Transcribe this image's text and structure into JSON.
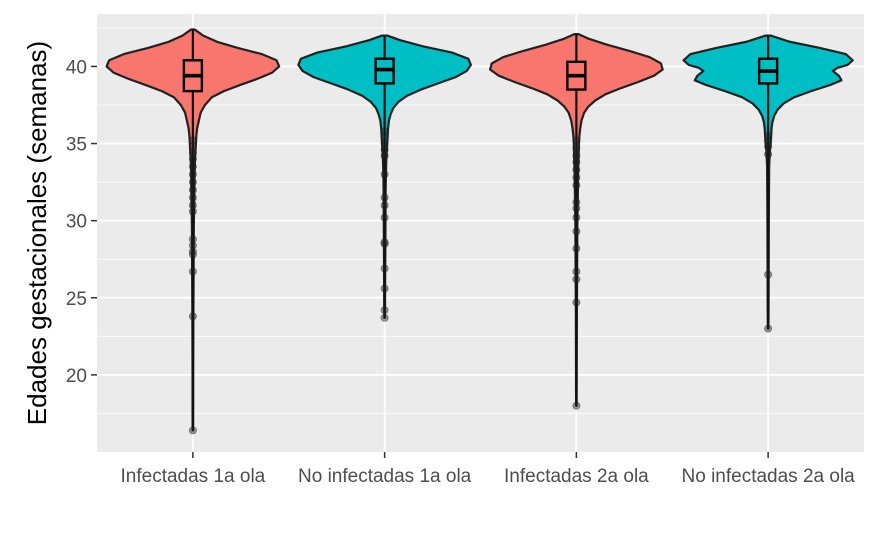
{
  "chart_data": {
    "type": "violin",
    "ylabel": "Edades gestacionales (semanas)",
    "xlabel": "",
    "ylim": [
      15,
      43.4
    ],
    "yticks": [
      20,
      25,
      30,
      35,
      40
    ],
    "categories": [
      "Infectadas 1a ola",
      "No infectadas 1a ola",
      "Infectadas 2a ola",
      "No infectadas 2a ola"
    ],
    "grid": true,
    "legend": "none",
    "groups": [
      {
        "label": "Infectadas 1a ola",
        "color": "#f8766d",
        "box": {
          "q1": 38.4,
          "median": 39.4,
          "q3": 40.4
        },
        "whisker": [
          16.4,
          42.4
        ],
        "violin": [
          [
            42.4,
            0.02
          ],
          [
            42.0,
            0.12
          ],
          [
            41.6,
            0.28
          ],
          [
            41.2,
            0.52
          ],
          [
            40.8,
            0.8
          ],
          [
            40.4,
            0.97
          ],
          [
            40.0,
            1.0
          ],
          [
            39.6,
            0.92
          ],
          [
            39.2,
            0.75
          ],
          [
            38.8,
            0.55
          ],
          [
            38.4,
            0.36
          ],
          [
            38.0,
            0.22
          ],
          [
            37.5,
            0.14
          ],
          [
            37.0,
            0.09
          ],
          [
            36.5,
            0.07
          ],
          [
            36.0,
            0.05
          ],
          [
            35.5,
            0.04
          ],
          [
            35.0,
            0.035
          ],
          [
            34.0,
            0.025
          ],
          [
            33.0,
            0.02
          ],
          [
            32.0,
            0.018
          ],
          [
            31.0,
            0.015
          ],
          [
            30.0,
            0.012
          ],
          [
            29.0,
            0.01
          ],
          [
            28.0,
            0.01
          ],
          [
            26.0,
            0.008
          ],
          [
            24.0,
            0.006
          ],
          [
            22.0,
            0.005
          ],
          [
            20.0,
            0.004
          ],
          [
            18.0,
            0.004
          ],
          [
            16.4,
            0.003
          ]
        ],
        "outliers": [
          16.4,
          23.8,
          26.7,
          27.8,
          28.0,
          28.4,
          28.8,
          30.6,
          31.0,
          31.5,
          32.0,
          32.5,
          33.0,
          33.5,
          34.0,
          34.4,
          34.8,
          35.2
        ]
      },
      {
        "label": "No infectadas 1a ola",
        "color": "#00bfc4",
        "box": {
          "q1": 38.9,
          "median": 39.8,
          "q3": 40.5
        },
        "whisker": [
          23.7,
          42.0
        ],
        "violin": [
          [
            42.0,
            0.03
          ],
          [
            41.7,
            0.18
          ],
          [
            41.3,
            0.45
          ],
          [
            40.9,
            0.78
          ],
          [
            40.5,
            0.97
          ],
          [
            40.1,
            1.0
          ],
          [
            39.7,
            0.95
          ],
          [
            39.3,
            0.82
          ],
          [
            38.9,
            0.62
          ],
          [
            38.5,
            0.42
          ],
          [
            38.1,
            0.26
          ],
          [
            37.7,
            0.16
          ],
          [
            37.3,
            0.1
          ],
          [
            36.9,
            0.07
          ],
          [
            36.5,
            0.05
          ],
          [
            36.0,
            0.04
          ],
          [
            35.5,
            0.035
          ],
          [
            35.0,
            0.03
          ],
          [
            34.0,
            0.02
          ],
          [
            33.0,
            0.015
          ],
          [
            32.0,
            0.012
          ],
          [
            30.0,
            0.01
          ],
          [
            28.0,
            0.008
          ],
          [
            26.0,
            0.006
          ],
          [
            24.5,
            0.005
          ],
          [
            23.7,
            0.003
          ]
        ],
        "outliers": [
          23.7,
          24.2,
          25.6,
          26.9,
          28.5,
          28.6,
          30.2,
          31.0,
          31.5,
          33.0,
          34.2,
          34.6,
          35.0,
          35.4,
          35.8
        ]
      },
      {
        "label": "Infectadas 2a ola",
        "color": "#f8766d",
        "box": {
          "q1": 38.5,
          "median": 39.4,
          "q3": 40.3
        },
        "whisker": [
          18.0,
          42.1
        ],
        "violin": [
          [
            42.1,
            0.02
          ],
          [
            41.8,
            0.14
          ],
          [
            41.4,
            0.36
          ],
          [
            41.0,
            0.62
          ],
          [
            40.6,
            0.85
          ],
          [
            40.2,
            0.98
          ],
          [
            39.8,
            1.0
          ],
          [
            39.4,
            0.9
          ],
          [
            39.0,
            0.72
          ],
          [
            38.6,
            0.52
          ],
          [
            38.2,
            0.34
          ],
          [
            37.8,
            0.22
          ],
          [
            37.4,
            0.14
          ],
          [
            37.0,
            0.09
          ],
          [
            36.5,
            0.06
          ],
          [
            36.0,
            0.045
          ],
          [
            35.5,
            0.035
          ],
          [
            35.0,
            0.03
          ],
          [
            34.0,
            0.025
          ],
          [
            33.0,
            0.02
          ],
          [
            32.0,
            0.018
          ],
          [
            31.0,
            0.015
          ],
          [
            30.0,
            0.012
          ],
          [
            28.0,
            0.01
          ],
          [
            26.0,
            0.008
          ],
          [
            24.0,
            0.006
          ],
          [
            22.0,
            0.005
          ],
          [
            20.0,
            0.004
          ],
          [
            18.0,
            0.003
          ]
        ],
        "outliers": [
          18.0,
          24.7,
          26.2,
          26.7,
          28.2,
          29.3,
          30.2,
          30.8,
          31.2,
          32.3,
          32.8,
          33.3,
          33.8,
          34.2,
          34.7,
          35.2
        ]
      },
      {
        "label": "No infectadas 2a ola",
        "color": "#00bfc4",
        "box": {
          "q1": 38.9,
          "median": 39.7,
          "q3": 40.5
        },
        "whisker": [
          23.0,
          42.0
        ],
        "violin": [
          [
            42.0,
            0.03
          ],
          [
            41.6,
            0.25
          ],
          [
            41.2,
            0.6
          ],
          [
            40.8,
            0.9
          ],
          [
            40.4,
            0.98
          ],
          [
            40.1,
            0.92
          ],
          [
            39.9,
            0.8
          ],
          [
            39.7,
            0.75
          ],
          [
            39.4,
            0.82
          ],
          [
            39.1,
            0.85
          ],
          [
            38.8,
            0.72
          ],
          [
            38.4,
            0.5
          ],
          [
            38.0,
            0.3
          ],
          [
            37.6,
            0.18
          ],
          [
            37.2,
            0.11
          ],
          [
            36.8,
            0.07
          ],
          [
            36.4,
            0.05
          ],
          [
            36.0,
            0.04
          ],
          [
            35.5,
            0.035
          ],
          [
            35.0,
            0.03
          ],
          [
            34.5,
            0.02
          ],
          [
            33.5,
            0.012
          ],
          [
            32.0,
            0.01
          ],
          [
            30.0,
            0.008
          ],
          [
            28.0,
            0.007
          ],
          [
            26.0,
            0.006
          ],
          [
            24.0,
            0.005
          ],
          [
            23.0,
            0.003
          ]
        ],
        "outliers": [
          23.0,
          26.5,
          34.3,
          34.8,
          35.2,
          35.5
        ]
      }
    ]
  }
}
